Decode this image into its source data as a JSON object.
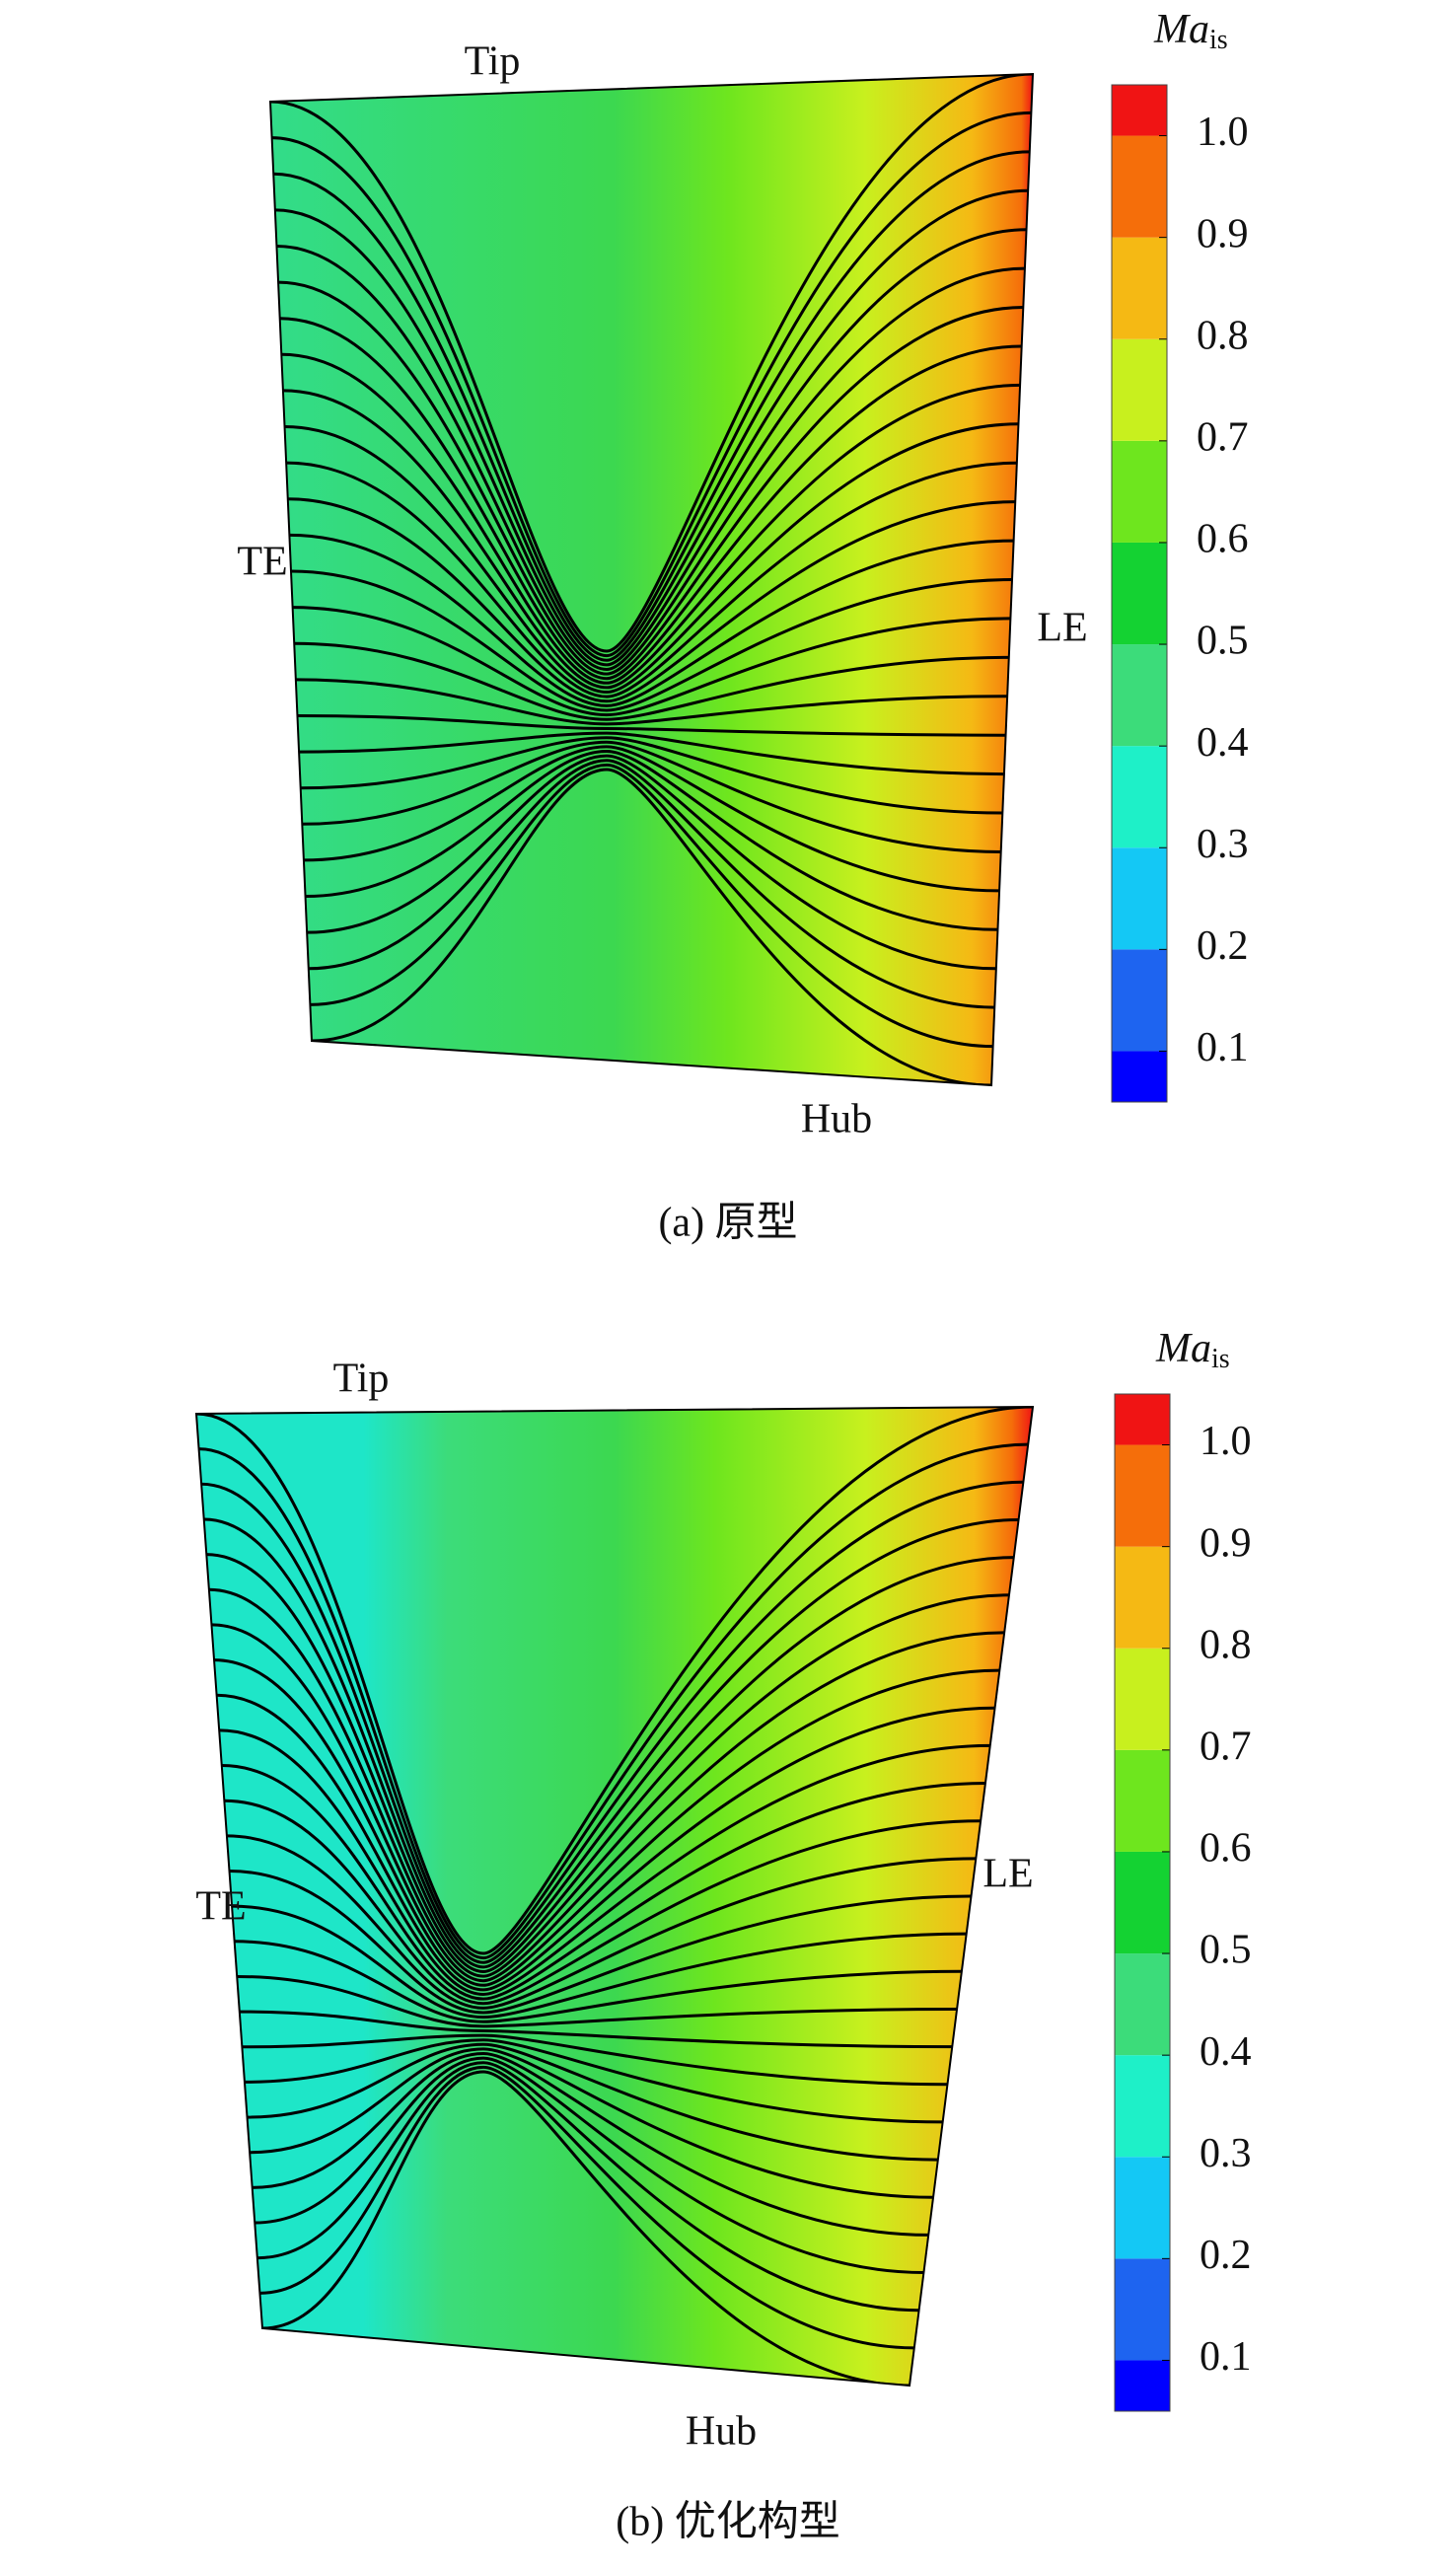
{
  "panels": [
    {
      "labels": {
        "tip": "Tip",
        "te": "TE",
        "le": "LE",
        "hub": "Hub"
      },
      "caption": "(a) 原型",
      "colorbar": {
        "title": "Ma",
        "title_sub": "is",
        "range": [
          0.05,
          1.05
        ],
        "ticks": [
          0.1,
          0.2,
          0.3,
          0.4,
          0.5,
          0.6,
          0.7,
          0.8,
          0.9,
          {
            "value": 1,
            "label": "1.0"
          }
        ],
        "colors": [
          "#0000ff",
          "#1e64f0",
          "#14c8f5",
          "#1ef0c8",
          "#3cdc7a",
          "#14d232",
          "#6ee61e",
          "#c8f01e",
          "#f5b914",
          "#f56e0a",
          "#f01414"
        ]
      }
    },
    {
      "labels": {
        "tip": "Tip",
        "te": "TE",
        "le": "LE",
        "hub": "Hub"
      },
      "caption": "(b) 优化构型",
      "colorbar": {
        "title": "Ma",
        "title_sub": "is",
        "range": [
          0.05,
          1.05
        ],
        "ticks": [
          0.1,
          0.2,
          0.3,
          0.4,
          0.5,
          0.6,
          0.7,
          0.8,
          0.9,
          {
            "value": 1,
            "label": "1.0"
          }
        ],
        "colors": [
          "#0000ff",
          "#1e64f0",
          "#14c8f5",
          "#1ef0c8",
          "#3cdc7a",
          "#14d232",
          "#6ee61e",
          "#c8f01e",
          "#f5b914",
          "#f56e0a",
          "#f01414"
        ]
      }
    }
  ]
}
